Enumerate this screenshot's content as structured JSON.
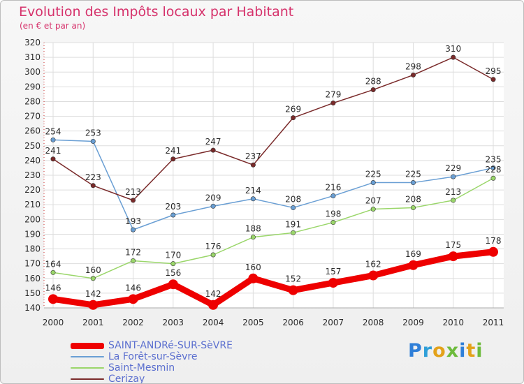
{
  "header": {
    "title": "Evolution des Impôts locaux par Habitant",
    "subtitle": "(en € et par an)"
  },
  "logo": {
    "letters": [
      "P",
      "r",
      "o",
      "x",
      "i",
      "t",
      "i"
    ],
    "colors": [
      "#2f7fd8",
      "#2f9fd8",
      "#e3a21a",
      "#6dbb3c",
      "#2f7fd8",
      "#e3a21a",
      "#6dbb3c"
    ]
  },
  "chart_data": {
    "type": "line",
    "title": "Evolution des Impôts locaux par Habitant",
    "subtitle": "(en € et par an)",
    "xlabel": "",
    "ylabel": "",
    "categories": [
      "2000",
      "2001",
      "2002",
      "2003",
      "2004",
      "2005",
      "2006",
      "2007",
      "2008",
      "2009",
      "2010",
      "2011"
    ],
    "ylim": [
      140,
      320
    ],
    "yticks": [
      140,
      150,
      160,
      170,
      180,
      190,
      200,
      210,
      220,
      230,
      240,
      250,
      260,
      270,
      280,
      290,
      300,
      310,
      320
    ],
    "grid": true,
    "legend_position": "bottom-left",
    "series": [
      {
        "name": "SAINT-ANDRé-SUR-SèVRE",
        "values": [
          146,
          142,
          146,
          156,
          142,
          160,
          152,
          157,
          162,
          169,
          175,
          178
        ],
        "color": "#ee0000",
        "bold": true
      },
      {
        "name": "La Forêt-sur-Sèvre",
        "values": [
          254,
          253,
          193,
          203,
          209,
          214,
          208,
          216,
          225,
          225,
          229,
          235
        ],
        "color": "#6a9fd4",
        "bold": false
      },
      {
        "name": "Saint-Mesmin",
        "values": [
          164,
          160,
          172,
          170,
          176,
          188,
          191,
          198,
          207,
          208,
          213,
          228
        ],
        "color": "#9ad66a",
        "bold": false
      },
      {
        "name": "Cerizay",
        "values": [
          241,
          223,
          213,
          241,
          247,
          237,
          269,
          279,
          288,
          298,
          310,
          295
        ],
        "color": "#7a2a2a",
        "bold": false
      }
    ]
  }
}
